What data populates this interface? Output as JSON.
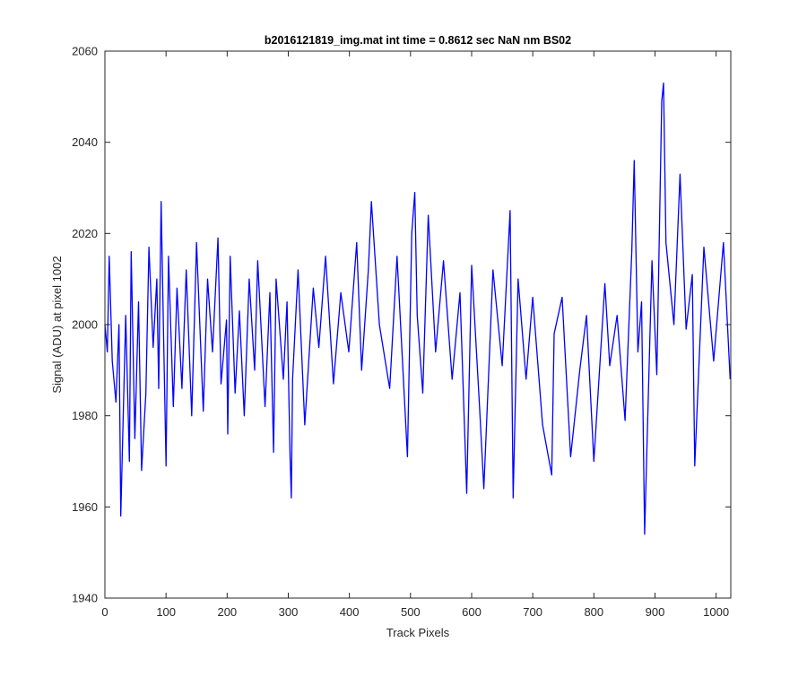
{
  "chart_data": {
    "type": "line",
    "title": "b2016121819_img.mat int time = 0.8612 sec  NaN nm BS02",
    "xlabel": "Track Pixels",
    "ylabel": "Signal (ADU) at pixel 1002",
    "xlim": [
      0,
      1024
    ],
    "ylim": [
      1940,
      2060
    ],
    "xticks": [
      0,
      100,
      200,
      300,
      400,
      500,
      600,
      700,
      800,
      900,
      1000
    ],
    "yticks": [
      1940,
      1960,
      1980,
      2000,
      2020,
      2040,
      2060
    ],
    "grid": false,
    "line_color": "#0000ff",
    "series": [
      {
        "x": [
          0,
          4,
          7,
          12,
          18,
          23,
          26,
          29,
          34,
          40,
          43,
          49,
          55,
          60,
          67,
          72,
          79,
          85,
          88,
          92,
          96,
          100,
          104,
          112,
          118,
          126,
          133,
          142,
          150,
          161,
          168,
          176,
          185,
          190,
          199,
          201,
          205,
          213,
          220,
          228,
          236,
          245,
          250,
          262,
          270,
          276,
          280,
          292,
          298,
          303,
          305,
          307,
          316,
          327,
          341,
          350,
          361,
          374,
          386,
          399,
          412,
          420,
          431,
          436,
          449,
          466,
          478,
          495,
          502,
          507,
          511,
          520,
          529,
          541,
          554,
          568,
          581,
          592,
          600,
          613,
          620,
          635,
          650,
          663,
          668,
          676,
          689,
          700,
          716,
          731,
          735,
          748,
          762,
          777,
          788,
          800,
          818,
          826,
          838,
          851,
          862,
          866,
          872,
          878,
          883,
          895,
          903,
          911,
          914,
          918,
          931,
          941,
          951,
          961,
          965,
          980,
          996,
          1012,
          1023
        ],
        "y": [
          2000,
          1994,
          2015,
          1992,
          1983,
          2000,
          1958,
          1975,
          2002,
          1970,
          2016,
          1975,
          2005,
          1968,
          1985,
          2017,
          1995,
          2010,
          1986,
          2027,
          1998,
          1969,
          2015,
          1982,
          2008,
          1986,
          2012,
          1980,
          2018,
          1981,
          2010,
          1994,
          2019,
          1987,
          2001,
          1976,
          2015,
          1985,
          2003,
          1980,
          2010,
          1990,
          2014,
          1982,
          2007,
          1972,
          2010,
          1988,
          2005,
          1971,
          1962,
          1988,
          2012,
          1978,
          2008,
          1995,
          2015,
          1987,
          2007,
          1994,
          2018,
          1990,
          2012,
          2027,
          2000,
          1986,
          2015,
          1971,
          2020,
          2029,
          2002,
          1985,
          2024,
          1994,
          2014,
          1988,
          2007,
          1963,
          2013,
          1982,
          1964,
          2012,
          1991,
          2025,
          1962,
          2010,
          1988,
          2006,
          1978,
          1967,
          1998,
          2006,
          1971,
          1990,
          2002,
          1970,
          2009,
          1991,
          2002,
          1979,
          2016,
          2036,
          1994,
          2005,
          1954,
          2014,
          1989,
          2049,
          2053,
          2018,
          2000,
          2033,
          1999,
          2011,
          1969,
          2017,
          1992,
          2018,
          1988
        ]
      }
    ]
  }
}
